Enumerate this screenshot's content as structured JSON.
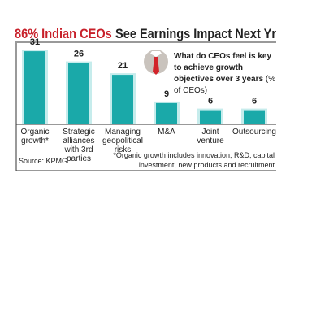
{
  "chart_data": {
    "type": "bar",
    "title": [
      "86% Indian CEOs",
      "See Earnings Impact Next Yr"
    ],
    "subtitle": "What do CEOs feel is key to achieve growth objectives over 3 years",
    "unit_note": "(% of CEOs)",
    "categories": [
      "Organic growth*",
      "Strategic alliances with 3rd parties",
      "Managing geopolitical risks",
      "M&A",
      "Joint venture",
      "Outsourcing"
    ],
    "values": [
      31,
      26,
      21,
      9,
      6,
      6
    ],
    "color": "#1aa9a9",
    "footnote": "*Organic growth includes innovation, R&D, capital investment, new products and recruitment",
    "source": "Source: KPMG"
  }
}
